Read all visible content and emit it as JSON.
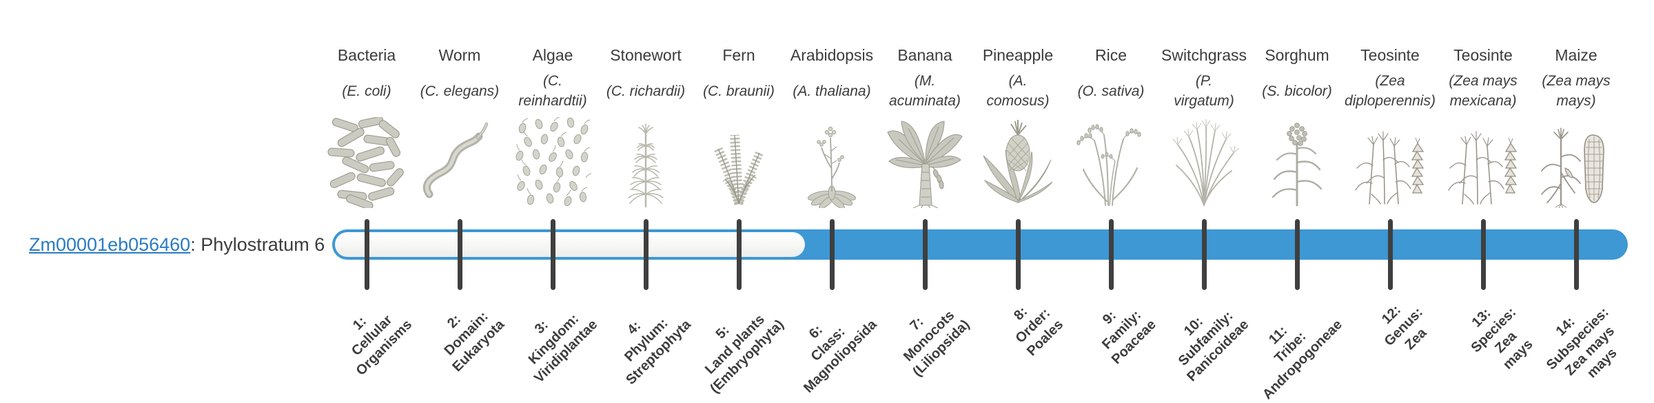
{
  "colors": {
    "accent": "#3d98d4",
    "tick": "#3f3f3f",
    "text": "#3c3c3c",
    "link": "#2b7cc1"
  },
  "gene": {
    "id": "Zm00001eb056460",
    "label_suffix": ": Phylostratum 6",
    "phylostratum": 6,
    "total_strata": 14
  },
  "organisms": [
    {
      "name": "Bacteria",
      "species_lines": [
        "(E. coli)"
      ],
      "icon": "bacteria-icon",
      "stratum": 1,
      "stratum_lines": [
        "1:",
        "Cellular",
        "Organisms"
      ],
      "highlighted": false
    },
    {
      "name": "Worm",
      "species_lines": [
        "(C. elegans)"
      ],
      "icon": "worm-icon",
      "stratum": 2,
      "stratum_lines": [
        "2:",
        "Domain:",
        "Eukaryota"
      ],
      "highlighted": false
    },
    {
      "name": "Algae",
      "species_lines": [
        "(C.",
        "reinhardtii)"
      ],
      "icon": "algae-icon",
      "stratum": 3,
      "stratum_lines": [
        "3:",
        "Kingdom:",
        "Viridiplantae"
      ],
      "highlighted": false
    },
    {
      "name": "Stonewort",
      "species_lines": [
        "(C. richardii)"
      ],
      "icon": "stonewort-icon",
      "stratum": 4,
      "stratum_lines": [
        "4:",
        "Phylum:",
        "Streptophyta"
      ],
      "highlighted": false
    },
    {
      "name": "Fern",
      "species_lines": [
        "(C. braunii)"
      ],
      "icon": "fern-icon",
      "stratum": 5,
      "stratum_lines": [
        "5:",
        "Land plants",
        "(Embryophyta)"
      ],
      "highlighted": false
    },
    {
      "name": "Arabidopsis",
      "species_lines": [
        "(A. thaliana)"
      ],
      "icon": "arabidopsis-icon",
      "stratum": 6,
      "stratum_lines": [
        "6:",
        "Class:",
        "Magnoliopsida"
      ],
      "highlighted": true
    },
    {
      "name": "Banana",
      "species_lines": [
        "(M.",
        "acuminata)"
      ],
      "icon": "banana-icon",
      "stratum": 7,
      "stratum_lines": [
        "7:",
        "Monocots",
        "(Liliopsida)"
      ],
      "highlighted": true
    },
    {
      "name": "Pineapple",
      "species_lines": [
        "(A.",
        "comosus)"
      ],
      "icon": "pineapple-icon",
      "stratum": 8,
      "stratum_lines": [
        "8:",
        "Order:",
        "Poales"
      ],
      "highlighted": true
    },
    {
      "name": "Rice",
      "species_lines": [
        "(O. sativa)"
      ],
      "icon": "rice-icon",
      "stratum": 9,
      "stratum_lines": [
        "9:",
        "Family:",
        "Poaceae"
      ],
      "highlighted": true
    },
    {
      "name": "Switchgrass",
      "species_lines": [
        "(P.",
        "virgatum)"
      ],
      "icon": "switchgrass-icon",
      "stratum": 10,
      "stratum_lines": [
        "10:",
        "Subfamily:",
        "Panicoideae"
      ],
      "highlighted": true
    },
    {
      "name": "Sorghum",
      "species_lines": [
        "(S. bicolor)"
      ],
      "icon": "sorghum-icon",
      "stratum": 11,
      "stratum_lines": [
        "11:",
        "Tribe:",
        "Andropogoneae"
      ],
      "highlighted": true
    },
    {
      "name": "Teosinte",
      "species_lines": [
        "(Zea",
        "diploperennis)"
      ],
      "icon": "teosinte-icon",
      "stratum": 12,
      "stratum_lines": [
        "12:",
        "Genus:",
        "Zea"
      ],
      "highlighted": true
    },
    {
      "name": "Teosinte",
      "species_lines": [
        "(Zea mays",
        "mexicana)"
      ],
      "icon": "teosinte-icon",
      "stratum": 13,
      "stratum_lines": [
        "13:",
        "Species:",
        "Zea",
        "mays"
      ],
      "highlighted": true
    },
    {
      "name": "Maize",
      "species_lines": [
        "(Zea mays",
        "mays)"
      ],
      "icon": "maize-icon",
      "stratum": 14,
      "stratum_lines": [
        "14:",
        "Subspecies:",
        "Zea mays",
        "mays"
      ],
      "highlighted": true
    }
  ]
}
